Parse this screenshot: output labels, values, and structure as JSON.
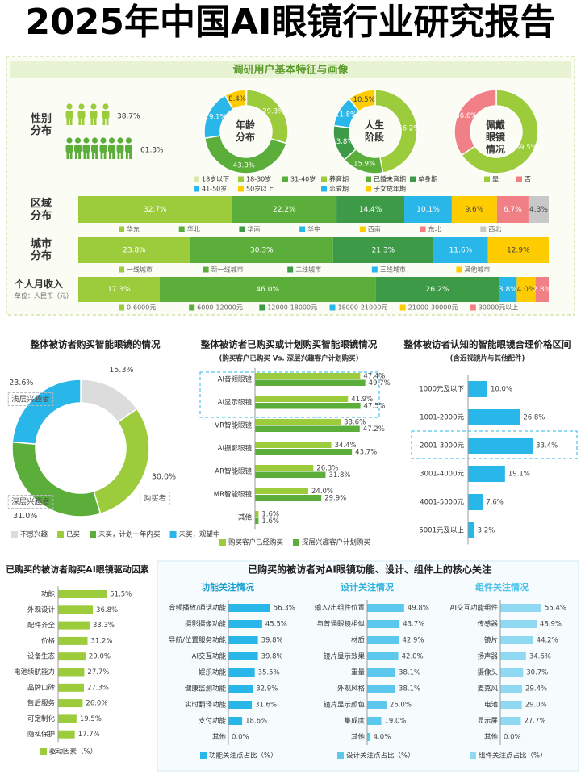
{
  "title": "2025年中国AI眼镜行业研究报告",
  "section_title": "调研用户基本特征与画像",
  "concern_title": "已购买的被访者对AI眼镜功能、设计、组件上的核心关注",
  "chart_data": [
    {
      "type": "pictograph",
      "title": "性别分布",
      "values": [
        38.7,
        61.3
      ],
      "value_labels": [
        "38.7%",
        "61.3%"
      ],
      "colors": [
        "#9ccc3c",
        "#5cae3a"
      ]
    },
    {
      "type": "donut",
      "title": "年龄分布",
      "categories": [
        "18岁以下",
        "18-30岁",
        "31-40岁",
        "41-50岁",
        "50岁以上"
      ],
      "values": [
        0.2,
        29.3,
        43.0,
        19.1,
        8.4
      ],
      "value_labels": [
        null,
        "29.3%",
        "43.0%",
        "19.1%",
        "8.4%"
      ],
      "colors": [
        "#d6e9a8",
        "#9ccc3c",
        "#5cae3a",
        "#29b6e8",
        "#ffcc00"
      ]
    },
    {
      "type": "donut",
      "title": "人生阶段",
      "categories": [
        "养育期",
        "已婚未育期",
        "单身期",
        "恋爱期",
        "子女成年期"
      ],
      "values": [
        46.2,
        15.9,
        13.8,
        11.8,
        10.5
      ],
      "value_labels": [
        "46.2%",
        "15.9%",
        "13.8%",
        "11.8%",
        "10.5%"
      ],
      "colors": [
        "#9ccc3c",
        "#5cae3a",
        "#3d9a47",
        "#29b6e8",
        "#ffcc00"
      ]
    },
    {
      "type": "donut",
      "title": "佩戴眼镜情况",
      "categories": [
        "是",
        "否"
      ],
      "values": [
        69.5,
        36.6
      ],
      "value_labels": [
        "69.5%",
        "36.6%"
      ],
      "colors": [
        "#9ccc3c",
        "#f07f86"
      ]
    },
    {
      "type": "stacked_bar",
      "title": "区域分布",
      "categories": [
        "华东",
        "华北",
        "华南",
        "华中",
        "西南",
        "东北",
        "西北"
      ],
      "values": [
        32.7,
        22.2,
        14.4,
        10.1,
        9.6,
        6.7,
        4.3
      ],
      "value_labels": [
        "32.7%",
        "22.2%",
        "14.4%",
        "10.1%",
        "9.6%",
        "6.7%",
        "4.3%"
      ],
      "colors": [
        "#9ccc3c",
        "#5cae3a",
        "#3d9a47",
        "#29b6e8",
        "#ffcc00",
        "#f07f86",
        "#c8c8c8"
      ]
    },
    {
      "type": "stacked_bar",
      "title": "城市分布",
      "categories": [
        "一线城市",
        "新一线城市",
        "二线城市",
        "三线城市",
        "其他城市"
      ],
      "values": [
        23.8,
        30.3,
        21.3,
        11.6,
        12.9
      ],
      "value_labels": [
        "23.8%",
        "30.3%",
        "21.3%",
        "11.6%",
        "12.9%"
      ],
      "colors": [
        "#9ccc3c",
        "#5cae3a",
        "#3d9a47",
        "#29b6e8",
        "#ffcc00"
      ]
    },
    {
      "type": "stacked_bar",
      "title": "个人月收入",
      "subtitle": "单位：人民币（元）",
      "categories": [
        "0-6000元",
        "6000-12000元",
        "12000-18000元",
        "18000-21000元",
        "21000-30000元",
        "30000元以上"
      ],
      "values": [
        17.3,
        46.0,
        26.2,
        3.8,
        4.0,
        2.8
      ],
      "value_labels": [
        "17.3%",
        "46.0%",
        "26.2%",
        "3.8%",
        "4.0%",
        "2.8%"
      ],
      "colors": [
        "#9ccc3c",
        "#5cae3a",
        "#3d9a47",
        "#29b6e8",
        "#ffcc00",
        "#f07f86"
      ]
    },
    {
      "type": "donut",
      "title": "整体被访者购买智能眼镜的情况",
      "categories": [
        "不感兴趣",
        "已买",
        "未买，计划一年内买",
        "未买，观望中"
      ],
      "values": [
        15.3,
        30.0,
        31.0,
        23.6
      ],
      "value_labels": [
        "15.3%",
        "30.0%",
        "31.0%",
        "23.6%"
      ],
      "colors": [
        "#dcdcdc",
        "#9ccc3c",
        "#5cae3a",
        "#29b6e8"
      ],
      "annotations": [
        null,
        "购买者",
        "深层兴趣者",
        "浅层兴趣者"
      ]
    },
    {
      "type": "hbar",
      "title": "整体被访者已购买或计划购买智能眼镜情况",
      "subtitle": "(购买客户已购买 Vs. 深层兴趣客户计划购买)",
      "categories": [
        "AI音频眼镜",
        "AI显示眼镜",
        "VR智能眼镜",
        "AI摄影眼镜",
        "AR智能眼镜",
        "MR智能眼镜",
        "其他"
      ],
      "series": [
        {
          "name": "购买客户已经购买",
          "color": "#9ccc3c",
          "values": [
            47.4,
            41.9,
            38.6,
            34.4,
            26.3,
            24.0,
            1.6
          ],
          "value_labels": [
            "47.4%",
            "41.9%",
            "38.6%",
            "34.4%",
            "26.3%",
            "24.0%",
            "1.6%"
          ]
        },
        {
          "name": "深层兴趣客户计划购买",
          "color": "#5cae3a",
          "values": [
            49.7,
            47.5,
            47.2,
            43.7,
            31.8,
            29.9,
            1.6
          ],
          "value_labels": [
            "49.7%",
            "47.5%",
            "47.2%",
            "43.7%",
            "31.8%",
            "29.9%",
            "1.6%"
          ]
        }
      ]
    },
    {
      "type": "hbar",
      "title": "整体被访者认知的智能眼镜合理价格区间",
      "subtitle": "(含近视镜片与其他配件)",
      "categories": [
        "1000元及以下",
        "1001-2000元",
        "2001-3000元",
        "3001-4000元",
        "4001-5000元",
        "5001元及以上"
      ],
      "color": "#29b6e8",
      "values": [
        10.0,
        26.8,
        33.4,
        19.1,
        7.6,
        3.2
      ],
      "value_labels": [
        "10.0%",
        "26.8%",
        "33.4%",
        "19.1%",
        "7.6%",
        "3.2%"
      ]
    },
    {
      "type": "hbar",
      "title": "已购买的被访者购买AI眼镜驱动因素",
      "categories": [
        "功能",
        "外观设计",
        "配件齐全",
        "价格",
        "设备生态",
        "电池续航能力",
        "品牌口碑",
        "售后服务",
        "可定制化",
        "隐私保护"
      ],
      "series": [
        {
          "name": "驱动因素（%）",
          "color": "#9ccc3c",
          "values": [
            51.5,
            36.8,
            33.3,
            31.2,
            29.0,
            27.7,
            27.3,
            26.0,
            19.5,
            17.7
          ],
          "value_labels": [
            "51.5%",
            "36.8%",
            "33.3%",
            "31.2%",
            "29.0%",
            "27.7%",
            "27.3%",
            "26.0%",
            "19.5%",
            "17.7%"
          ]
        }
      ]
    },
    {
      "type": "hbar",
      "title": "功能关注情况",
      "categories": [
        "音频播放/通话功能",
        "摄影摄像功能",
        "导航/位置服务功能",
        "AI交互功能",
        "娱乐功能",
        "健康监测功能",
        "实时翻译功能",
        "支付功能",
        "其他"
      ],
      "series": [
        {
          "name": "功能关注点占比（%）",
          "color": "#29b6e8",
          "values": [
            56.3,
            45.5,
            39.8,
            39.8,
            35.5,
            32.9,
            31.6,
            18.6,
            0.0
          ],
          "value_labels": [
            "56.3%",
            "45.5%",
            "39.8%",
            "39.8%",
            "35.5%",
            "32.9%",
            "31.6%",
            "18.6%",
            "0.0%"
          ]
        }
      ]
    },
    {
      "type": "hbar",
      "title": "设计关注情况",
      "categories": [
        "输入/出组件位置",
        "与普通眼镜相似",
        "材质",
        "镜片显示效果",
        "重量",
        "外观风格",
        "镜片显示颜色",
        "集成度",
        "其他"
      ],
      "series": [
        {
          "name": "设计关注点占比（%）",
          "color": "#5cc8ee",
          "values": [
            49.8,
            43.7,
            42.9,
            42.0,
            38.1,
            38.1,
            26.0,
            19.0,
            4.0
          ],
          "value_labels": [
            "49.8%",
            "43.7%",
            "42.9%",
            "42.0%",
            "38.1%",
            "38.1%",
            "26.0%",
            "19.0%",
            "4.0%"
          ]
        }
      ]
    },
    {
      "type": "hbar",
      "title": "组件关注情况",
      "categories": [
        "AI交互功能组件",
        "传感器",
        "镜片",
        "扬声器",
        "摄像头",
        "麦克风",
        "电池",
        "显示屏",
        "其他"
      ],
      "series": [
        {
          "name": "组件关注点占比（%）",
          "color": "#8fd9f2",
          "values": [
            55.4,
            48.9,
            44.2,
            34.6,
            30.7,
            29.4,
            29.0,
            27.7,
            0.0
          ],
          "value_labels": [
            "55.4%",
            "48.9%",
            "44.2%",
            "34.6%",
            "30.7%",
            "29.4%",
            "29.0%",
            "27.7%",
            "0.0%"
          ]
        }
      ]
    }
  ]
}
